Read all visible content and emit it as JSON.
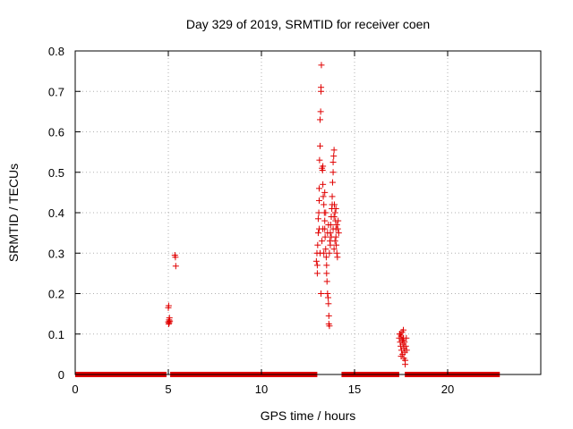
{
  "chart_data": {
    "type": "scatter",
    "title": "Day 329 of 2019, SRMTID for receiver coen",
    "xlabel": "GPS time / hours",
    "ylabel": "SRMTID / TECUs",
    "xlim": [
      0,
      25
    ],
    "ylim": [
      0,
      0.8
    ],
    "xticks": [
      0,
      5,
      10,
      15,
      20
    ],
    "yticks": [
      0,
      0.1,
      0.2,
      0.3,
      0.4,
      0.5,
      0.6,
      0.7,
      0.8
    ],
    "xtick_labels": [
      "0",
      "5",
      "10",
      "15",
      "20"
    ],
    "ytick_labels": [
      "0",
      "0.1",
      "0.2",
      "0.3",
      "0.4",
      "0.5",
      "0.6",
      "0.7",
      "0.8"
    ],
    "grid": true,
    "marker": "+",
    "color": "#e00000",
    "baseline_segments": [
      {
        "x_start": 0.0,
        "x_end": 4.9,
        "y": 0.0
      },
      {
        "x_start": 5.1,
        "x_end": 13.0,
        "y": 0.0
      },
      {
        "x_start": 14.3,
        "x_end": 17.4,
        "y": 0.0
      },
      {
        "x_start": 17.7,
        "x_end": 22.8,
        "y": 0.0
      }
    ],
    "points": [
      [
        5.0,
        0.13
      ],
      [
        5.02,
        0.125
      ],
      [
        5.04,
        0.135
      ],
      [
        5.06,
        0.14
      ],
      [
        5.0,
        0.165
      ],
      [
        5.02,
        0.17
      ],
      [
        5.05,
        0.128
      ],
      [
        5.08,
        0.132
      ],
      [
        5.35,
        0.295
      ],
      [
        5.38,
        0.29
      ],
      [
        5.4,
        0.268
      ],
      [
        12.95,
        0.28
      ],
      [
        12.98,
        0.3
      ],
      [
        13.0,
        0.27
      ],
      [
        13.02,
        0.32
      ],
      [
        13.05,
        0.35
      ],
      [
        13.05,
        0.385
      ],
      [
        13.08,
        0.4
      ],
      [
        13.1,
        0.43
      ],
      [
        13.1,
        0.46
      ],
      [
        13.12,
        0.53
      ],
      [
        13.15,
        0.565
      ],
      [
        13.15,
        0.63
      ],
      [
        13.18,
        0.65
      ],
      [
        13.2,
        0.7
      ],
      [
        13.2,
        0.71
      ],
      [
        13.22,
        0.765
      ],
      [
        13.25,
        0.51
      ],
      [
        13.28,
        0.505
      ],
      [
        13.3,
        0.515
      ],
      [
        13.3,
        0.47
      ],
      [
        13.32,
        0.44
      ],
      [
        13.35,
        0.42
      ],
      [
        13.38,
        0.4
      ],
      [
        13.4,
        0.38
      ],
      [
        13.4,
        0.36
      ],
      [
        13.42,
        0.34
      ],
      [
        13.45,
        0.31
      ],
      [
        13.48,
        0.29
      ],
      [
        13.5,
        0.27
      ],
      [
        13.5,
        0.25
      ],
      [
        13.52,
        0.23
      ],
      [
        13.55,
        0.2
      ],
      [
        13.58,
        0.19
      ],
      [
        13.6,
        0.175
      ],
      [
        13.62,
        0.145
      ],
      [
        13.62,
        0.125
      ],
      [
        13.65,
        0.12
      ],
      [
        13.65,
        0.3
      ],
      [
        13.68,
        0.33
      ],
      [
        13.7,
        0.35
      ],
      [
        13.72,
        0.37
      ],
      [
        13.75,
        0.39
      ],
      [
        13.78,
        0.41
      ],
      [
        13.8,
        0.42
      ],
      [
        13.8,
        0.44
      ],
      [
        13.82,
        0.475
      ],
      [
        13.85,
        0.5
      ],
      [
        13.85,
        0.525
      ],
      [
        13.88,
        0.54
      ],
      [
        13.9,
        0.555
      ],
      [
        13.92,
        0.42
      ],
      [
        13.95,
        0.4
      ],
      [
        13.98,
        0.38
      ],
      [
        14.0,
        0.36
      ],
      [
        14.0,
        0.34
      ],
      [
        14.02,
        0.32
      ],
      [
        14.05,
        0.3
      ],
      [
        14.08,
        0.29
      ],
      [
        14.1,
        0.36
      ],
      [
        14.12,
        0.38
      ],
      [
        14.15,
        0.35
      ],
      [
        13.0,
        0.25
      ],
      [
        13.2,
        0.2
      ],
      [
        13.15,
        0.3
      ],
      [
        13.25,
        0.33
      ],
      [
        13.3,
        0.36
      ],
      [
        13.35,
        0.3
      ],
      [
        13.45,
        0.4
      ],
      [
        13.55,
        0.35
      ],
      [
        13.6,
        0.37
      ],
      [
        13.7,
        0.32
      ],
      [
        13.75,
        0.34
      ],
      [
        13.85,
        0.36
      ],
      [
        13.9,
        0.39
      ],
      [
        14.0,
        0.41
      ],
      [
        14.05,
        0.37
      ],
      [
        13.95,
        0.33
      ],
      [
        13.4,
        0.45
      ],
      [
        13.1,
        0.36
      ],
      [
        13.9,
        0.31
      ],
      [
        17.4,
        0.09
      ],
      [
        17.42,
        0.1
      ],
      [
        17.45,
        0.08
      ],
      [
        17.48,
        0.07
      ],
      [
        17.5,
        0.095
      ],
      [
        17.52,
        0.06
      ],
      [
        17.55,
        0.085
      ],
      [
        17.55,
        0.105
      ],
      [
        17.58,
        0.05
      ],
      [
        17.6,
        0.075
      ],
      [
        17.62,
        0.09
      ],
      [
        17.62,
        0.11
      ],
      [
        17.65,
        0.04
      ],
      [
        17.65,
        0.065
      ],
      [
        17.68,
        0.08
      ],
      [
        17.7,
        0.055
      ],
      [
        17.72,
        0.035
      ],
      [
        17.72,
        0.025
      ],
      [
        17.75,
        0.07
      ],
      [
        17.78,
        0.09
      ],
      [
        17.8,
        0.06
      ],
      [
        17.5,
        0.045
      ],
      [
        17.45,
        0.1
      ],
      [
        17.6,
        0.085
      ]
    ]
  }
}
